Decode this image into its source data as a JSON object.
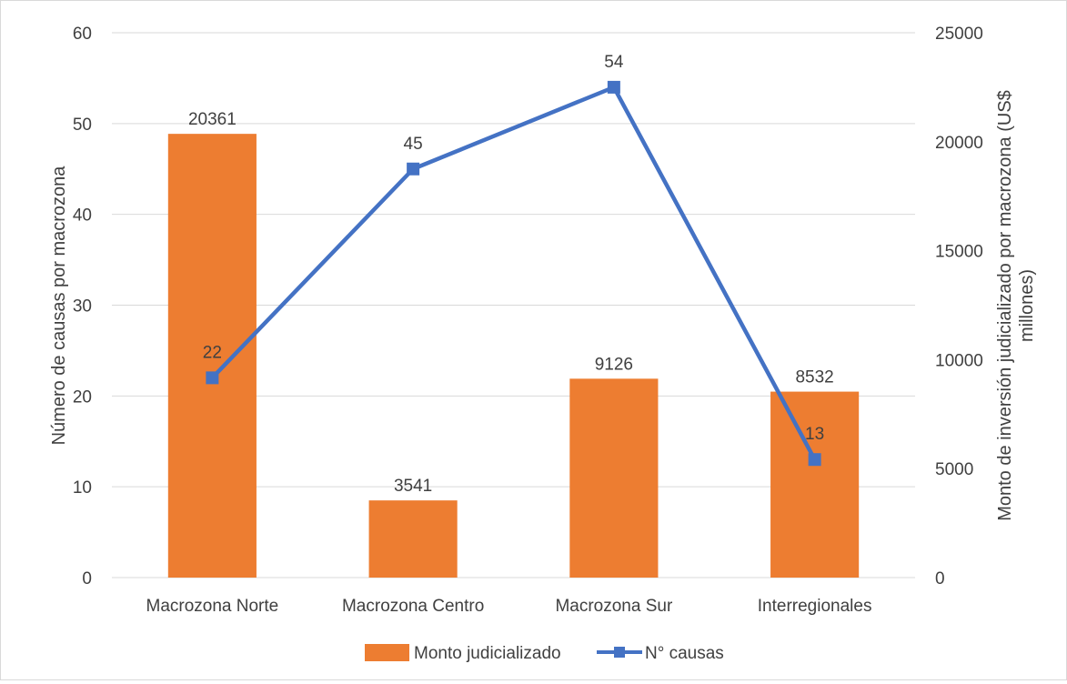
{
  "chart_data": {
    "type": "bar",
    "categories": [
      "Macrozona Norte",
      "Macrozona Centro",
      "Macrozona Sur",
      "Interregionales"
    ],
    "series": [
      {
        "name": "Monto judicializado",
        "type": "bar",
        "axis": "right",
        "values": [
          20361,
          3541,
          9126,
          8532
        ]
      },
      {
        "name": "N° causas",
        "type": "line",
        "axis": "left",
        "marker": "square",
        "values": [
          22,
          45,
          54,
          13
        ]
      }
    ],
    "ylabel": "Número de causas por macrozona",
    "y2label_line1": "Monto de inversión judicializado por macrozona (US$",
    "y2label_line2": "millones)",
    "ylim": [
      0,
      60
    ],
    "y2lim": [
      0,
      25000
    ],
    "yticks": [
      "0",
      "10",
      "20",
      "30",
      "40",
      "50",
      "60"
    ],
    "y2ticks": [
      "0",
      "5000",
      "10000",
      "15000",
      "20000",
      "25000"
    ],
    "grid": true,
    "legend": "bottom",
    "colors": {
      "bar": "#ED7D31",
      "line": "#4472C4",
      "grid": "#d9d9d9",
      "text": "#404040"
    }
  }
}
